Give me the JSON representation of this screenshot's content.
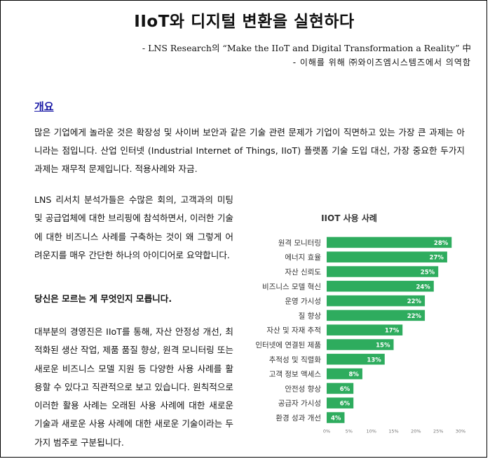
{
  "document": {
    "title": "IIoT와 디지털 변환을 실현하다",
    "subtitle_1": "- LNS Research의 “Make the IIoT and Digital Transformation a Reality” 中",
    "subtitle_2": "- 이해를 위해 ㈜와이즈엠시스템즈에서 의역함",
    "section_heading": "개요",
    "intro_paragraph": "많은 기업에게 놀라운 것은 확장성 및 사이버 보안과 같은 기술 관련 문제가 기업이 직면하고 있는 가장 큰 과제는 아니라는 점입니다. 산업 인터넷 (Industrial Internet of Things, IIoT) 플랫폼 기술 도입 대신, 가장 중요한 두가지 과제는 재무적 문제입니다. 적용사례와 자금.",
    "paragraph_1": "LNS 리서치 분석가들은 수많은 회의, 고객과의 미팅 및 공급업체에 대한 브리핑에 참석하면서, 이러한 기술에 대한 비즈니스 사례를 구축하는 것이 왜 그렇게 어려운지를 매우 간단한 하나의 아이디어로 요약합니다.",
    "paragraph_2": "당신은 모르는 게 무엇인지 모릅니다.",
    "paragraph_3": "대부분의 경영진은 IIoT를 통해, 자산 안정성 개선, 최적화된 생산 작업, 제품 품질 향상, 원격 모니터링 또는 새로운 비즈니스 모델 지원 등 다양한 사용 사례를 활용할 수 있다고 직관적으로 보고 있습니다. 원칙적으로 이러한 활용 사례는 오래된 사용 사례에 대한 새로운 기술과 새로운 사용 사례에 대한 새로운 기술이라는 두가지 범주로 구분됩니다."
  },
  "chart_data": {
    "type": "bar",
    "orientation": "horizontal",
    "title": "IIOT 사용 사례",
    "categories": [
      "원격 모니터링",
      "에너지 효율",
      "자산 신뢰도",
      "비즈니스 모델 혁신",
      "운영 가시성",
      "질 향상",
      "자산 및 자재 추적",
      "인터넷에 연결된 제품",
      "추적성 및 직렬화",
      "고객 정보 액세스",
      "안전성 향상",
      "공급자 가시성",
      "환경 성과 개선"
    ],
    "values": [
      28,
      27,
      25,
      24,
      22,
      22,
      17,
      15,
      13,
      8,
      6,
      6,
      4
    ],
    "data_labels": [
      "28%",
      "27%",
      "25%",
      "24%",
      "22%",
      "22%",
      "17%",
      "15%",
      "13%",
      "8%",
      "6%",
      "6%",
      "4%"
    ],
    "x_ticks": [
      "0%",
      "5%",
      "10%",
      "15%",
      "20%",
      "25%",
      "30%"
    ],
    "xlim": [
      0,
      30
    ],
    "bar_color": "#2eac5e",
    "label_color": "#ffffff",
    "grid": false
  }
}
